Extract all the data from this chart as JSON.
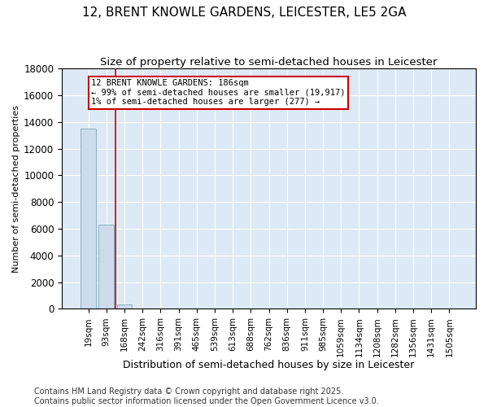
{
  "title": "12, BRENT KNOWLE GARDENS, LEICESTER, LE5 2GA",
  "subtitle": "Size of property relative to semi-detached houses in Leicester",
  "xlabel": "Distribution of semi-detached houses by size in Leicester",
  "ylabel": "Number of semi-detached properties",
  "categories": [
    "19sqm",
    "93sqm",
    "168sqm",
    "242sqm",
    "316sqm",
    "391sqm",
    "465sqm",
    "539sqm",
    "613sqm",
    "688sqm",
    "762sqm",
    "836sqm",
    "911sqm",
    "985sqm",
    "1059sqm",
    "1134sqm",
    "1208sqm",
    "1282sqm",
    "1356sqm",
    "1431sqm",
    "1505sqm"
  ],
  "values": [
    13500,
    6300,
    350,
    50,
    10,
    5,
    3,
    2,
    1,
    1,
    0,
    0,
    0,
    0,
    0,
    0,
    0,
    0,
    0,
    0,
    0
  ],
  "bar_color": "#ccdcec",
  "bar_edge_color": "#7aaabb",
  "vline_color": "#cc0000",
  "vline_x": 1.5,
  "annotation_text": "12 BRENT KNOWLE GARDENS: 186sqm\n← 99% of semi-detached houses are smaller (19,917)\n1% of semi-detached houses are larger (277) →",
  "annotation_box_color": "#cc0000",
  "ylim": [
    0,
    18000
  ],
  "yticks": [
    0,
    2000,
    4000,
    6000,
    8000,
    10000,
    12000,
    14000,
    16000,
    18000
  ],
  "background_color": "#ffffff",
  "plot_bg_color": "#ddeaf5",
  "grid_color": "#ffffff",
  "footer": "Contains HM Land Registry data © Crown copyright and database right 2025.\nContains public sector information licensed under the Open Government Licence v3.0.",
  "title_fontsize": 11,
  "subtitle_fontsize": 9.5,
  "xlabel_fontsize": 9,
  "ylabel_fontsize": 8,
  "tick_fontsize": 7.5,
  "footer_fontsize": 7
}
